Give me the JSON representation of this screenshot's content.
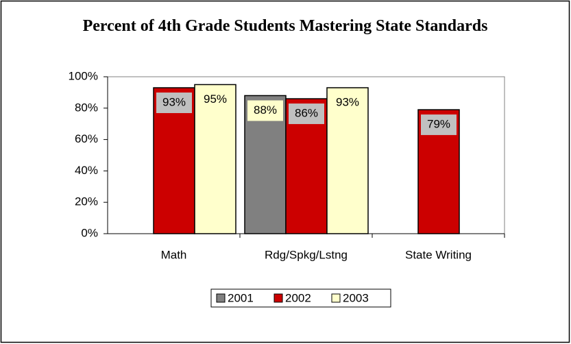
{
  "chart_data": {
    "type": "bar",
    "title": "Percent of 4th Grade Students Mastering State Standards",
    "categories": [
      "Math",
      "Rdg/Spkg/Lstng",
      "State  Writing"
    ],
    "series": [
      {
        "name": "2001",
        "color": "#808080",
        "values": [
          null,
          88,
          null
        ],
        "value_labels": [
          null,
          "88%",
          null
        ]
      },
      {
        "name": "2002",
        "color": "#cc0000",
        "values": [
          93,
          86,
          79
        ],
        "value_labels": [
          "93%",
          "86%",
          "79%"
        ]
      },
      {
        "name": "2003",
        "color": "#ffffcc",
        "values": [
          95,
          93,
          null
        ],
        "value_labels": [
          "95%",
          "93%",
          null
        ]
      }
    ],
    "ylim": [
      0,
      100
    ],
    "yticks": [
      {
        "value": 0,
        "label": "0%"
      },
      {
        "value": 20,
        "label": "20%"
      },
      {
        "value": 40,
        "label": "40%"
      },
      {
        "value": 60,
        "label": "60%"
      },
      {
        "value": 80,
        "label": "80%"
      },
      {
        "value": 100,
        "label": "100%"
      }
    ],
    "legend": "bottom"
  }
}
